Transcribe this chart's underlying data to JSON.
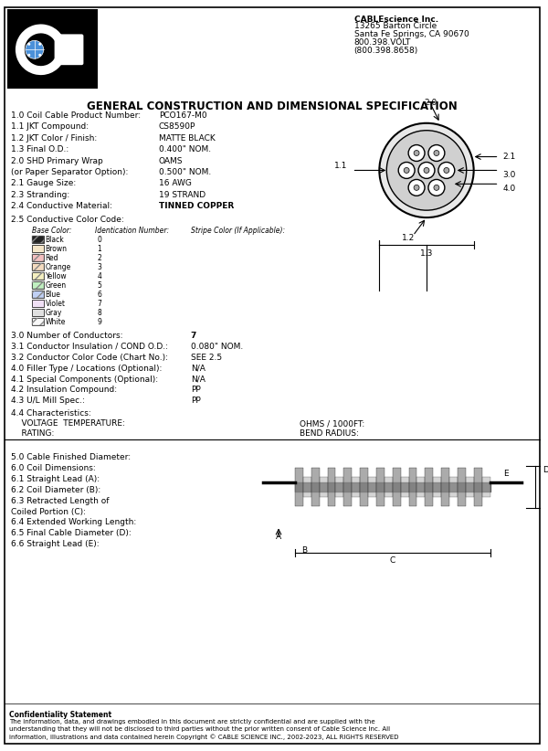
{
  "title": "GENERAL CONSTRUCTION AND DIMENSIONAL SPECIFICATION",
  "company_name": "CABLEscience Inc.",
  "company_address": [
    "13265 Barton Circle",
    "Santa Fe Springs, CA 90670",
    "800.398.VOLT",
    "(800.398.8658)"
  ],
  "specs": [
    [
      "1.0 Coil Cable Product Number:",
      "PCO167-M0"
    ],
    [
      "1.1 JKT Compound:",
      "CS8590P"
    ],
    [
      "1.2 JKT Color / Finish:",
      "MATTE BLACK"
    ],
    [
      "1.3 Final O.D.:",
      "0.400\" NOM."
    ],
    [
      "2.0 SHD Primary Wrap",
      "OAMS"
    ],
    [
      "(or Paper Separator Option):",
      "0.500\" NOM."
    ],
    [
      "2.1 Gauge Size:",
      "16 AWG"
    ],
    [
      "2.3 Stranding:",
      "19 STRAND"
    ],
    [
      "2.4 Conductive Material:",
      "TINNED COPPER"
    ]
  ],
  "color_code_header": [
    "Base Color:",
    "Identication Number:",
    "Stripe Color (If Applicable):"
  ],
  "color_codes": [
    {
      "name": "Black",
      "num": "0",
      "fill": "#000000",
      "hatch": "/"
    },
    {
      "name": "Brown",
      "num": "1",
      "fill": "#ffffff",
      "hatch": ""
    },
    {
      "name": "Red",
      "num": "2",
      "fill": "#ffffff",
      "hatch": "/"
    },
    {
      "name": "Orange",
      "num": "3",
      "fill": "#ffffff",
      "hatch": "/"
    },
    {
      "name": "Yellow",
      "num": "4",
      "fill": "#ffffff",
      "hatch": "/"
    },
    {
      "name": "Green",
      "num": "5",
      "fill": "#ffffff",
      "hatch": "/"
    },
    {
      "name": "Blue",
      "num": "6",
      "fill": "#ffffff",
      "hatch": "/"
    },
    {
      "name": "Violet",
      "num": "7",
      "fill": "#ffffff",
      "hatch": ""
    },
    {
      "name": "Gray",
      "num": "8",
      "fill": "#ffffff",
      "hatch": ""
    },
    {
      "name": "White",
      "num": "9",
      "fill": "#ffffff",
      "hatch": "/"
    }
  ],
  "specs2": [
    [
      "3.0 Number of Conductors:",
      "7"
    ],
    [
      "3.1 Conductor Insulation / COND O.D.:",
      "0.080\" NOM."
    ],
    [
      "3.2 Conductor Color Code (Chart No.):",
      "SEE 2.5"
    ],
    [
      "4.0 Filler Type / Locations (Optional):",
      "N/A"
    ],
    [
      "4.1 Special Components (Optional):",
      "N/A"
    ],
    [
      "4.2 Insulation Compound:",
      "PP"
    ],
    [
      "4.3 U/L Mill Spec.:",
      "PP"
    ]
  ],
  "characteristics_label": "4.4 Characteristics:",
  "voltage_label": "    VOLTAGE  TEMPERATURE:",
  "ohms_label": "OHMS / 1000FT:",
  "rating_label": "    RATING:",
  "bend_label": "BEND RADIUS:",
  "coil_dims": [
    "5.0 Cable Finished Diameter:",
    "6.0 Coil Dimensions:",
    "6.1 Straight Lead (A):",
    "6.2 Coil Diameter (B):",
    "6.3 Retracted Length of",
    "Coiled Portion (C):",
    "6.4 Extended Working Length:",
    "6.5 Final Cable Diameter (D):",
    "6.6 Straight Lead (E):"
  ],
  "confidentiality": [
    "Confidentiality Statement",
    "The information, data, and drawings embodied in this document are strictly confidential and are supplied with the",
    "understanding that they will not be disclosed to third parties without the prior written consent of Cable Science Inc. All",
    "information, illustrations and data contained herein Copyright © CABLE SCIENCE INC., 2002-2023, ALL RIGHTS RESERVED"
  ],
  "bg_color": "#ffffff",
  "text_color": "#000000",
  "border_color": "#000000"
}
